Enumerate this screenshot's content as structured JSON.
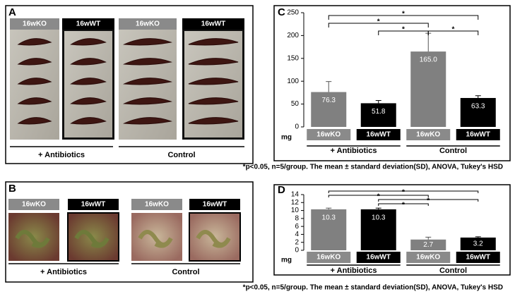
{
  "panels": {
    "A": {
      "letter": "A",
      "labels": [
        "16wKO",
        "16wWT",
        "16wKO",
        "16wWT"
      ],
      "groups": [
        "+ Antibiotics",
        "Control"
      ]
    },
    "B": {
      "letter": "B",
      "labels": [
        "16wKO",
        "16wWT",
        "16wKO",
        "16wWT"
      ],
      "groups": [
        "+ Antibiotics",
        "Control"
      ]
    }
  },
  "chart_data": [
    {
      "type": "bar",
      "letter": "C",
      "categories": [
        "16wKO",
        "16wWT",
        "16wKO",
        "16wWT"
      ],
      "values": [
        76.3,
        51.8,
        165.0,
        63.3
      ],
      "value_labels": [
        "76.3",
        "51.8",
        "165.0",
        "63.3"
      ],
      "errors": [
        23,
        6,
        40,
        5
      ],
      "colors": [
        "#808080",
        "#000000",
        "#808080",
        "#000000"
      ],
      "ylim": [
        0,
        250
      ],
      "yticks": [
        0,
        50,
        100,
        150,
        200,
        250
      ],
      "unit": "mg",
      "groups": [
        "+ Antibiotics",
        "Control"
      ],
      "annotations": [
        "*",
        "*",
        "*",
        "*"
      ],
      "footnote": "*p<0.05, n=5/group. The mean ± standard deviation(SD), ANOVA, Tukey's HSD"
    },
    {
      "type": "bar",
      "letter": "D",
      "categories": [
        "16wKO",
        "16wWT",
        "16wKO",
        "16wWT"
      ],
      "values": [
        10.3,
        10.3,
        2.7,
        3.2
      ],
      "value_labels": [
        "10.3",
        "10.3",
        "2.7",
        "3.2"
      ],
      "errors": [
        0.3,
        0.3,
        0.6,
        0.2
      ],
      "colors": [
        "#808080",
        "#000000",
        "#808080",
        "#000000"
      ],
      "ylim": [
        0,
        14
      ],
      "yticks": [
        0,
        2,
        4,
        6,
        8,
        10,
        12,
        14
      ],
      "unit": "mg",
      "groups": [
        "+ Antibiotics",
        "Control"
      ],
      "annotations": [
        "*",
        "*",
        "*",
        "*"
      ],
      "footnote": "*p<0.05, n=5/group. The mean ± standard deviation(SD), ANOVA, Tukey's HSD"
    }
  ]
}
